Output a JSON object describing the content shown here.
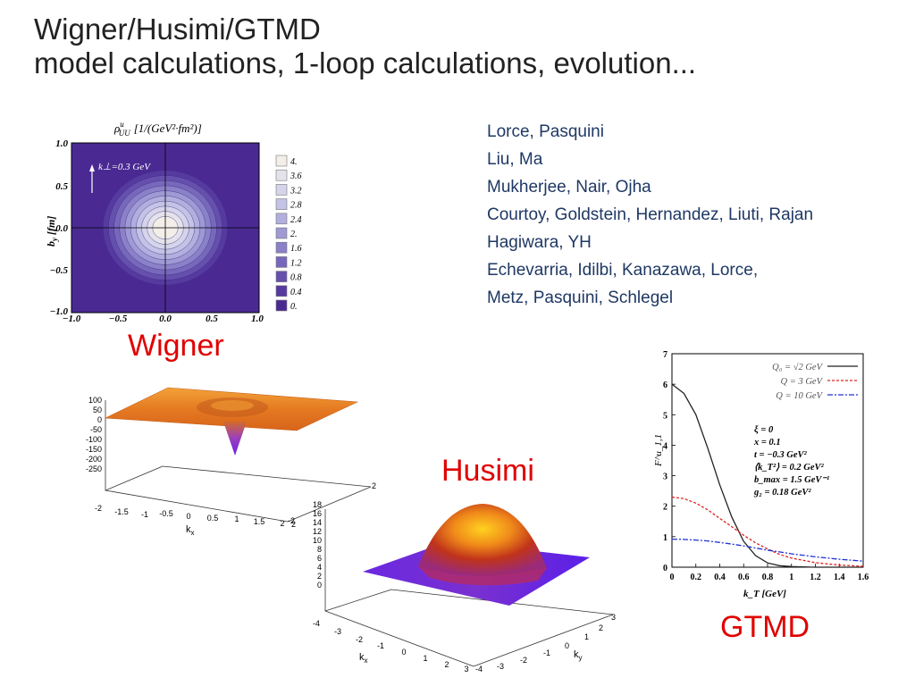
{
  "slide": {
    "title_line1": "Wigner/Husimi/GTMD",
    "title_line2": "model calculations, 1-loop calculations, evolution..."
  },
  "references": [
    "Lorce, Pasquini",
    "Liu, Ma",
    "Mukherjee, Nair, Ojha",
    "Courtoy, Goldstein, Hernandez, Liuti, Rajan",
    "Hagiwara, YH",
    "Echevarria, Idilbi, Kanazawa, Lorce,",
    "Metz, Pasquini, Schlegel"
  ],
  "labels": {
    "wigner": "Wigner",
    "husimi": "Husimi",
    "gtmd": "GTMD"
  },
  "contour": {
    "title": "ρ",
    "title_sup": "u",
    "title_sub": "UU",
    "title_units": "[1/(GeV²·fm²)]",
    "ylabel": "b",
    "ylabel_sub": "y",
    "ylabel_units": "[fm]",
    "annotation": "k⊥=0.3 GeV",
    "yticks": [
      "1.0",
      "0.5",
      "0.0",
      "−0.5",
      "−1.0"
    ],
    "xticks": [
      "−1.0",
      "−0.5",
      "0.0",
      "0.5",
      "1.0"
    ],
    "legend": [
      "4.",
      "3.6",
      "3.2",
      "2.8",
      "2.4",
      "2.",
      "1.6",
      "1.2",
      "0.8",
      "0.4",
      "0."
    ],
    "legend_colors": [
      "#f3eee8",
      "#e4e2ea",
      "#d5d4ea",
      "#c4c3e6",
      "#b2afde",
      "#9f99d4",
      "#8b81c8",
      "#7868bb",
      "#6650ad",
      "#563a9f",
      "#4a2a92"
    ]
  },
  "wigner_plot": {
    "zticks": [
      "100",
      "50",
      "0",
      "-50",
      "-100",
      "-150",
      "-200",
      "-250"
    ],
    "xticks": [
      "-2",
      "-1.5",
      "-1",
      "-0.5",
      "0",
      "0.5",
      "1",
      "1.5",
      "2"
    ],
    "xlabel": "k",
    "xlabel_sub": "x",
    "ytick_end": "2",
    "yedge_ticks": [
      "-2",
      "2"
    ]
  },
  "husimi_plot": {
    "zticks": [
      "18",
      "16",
      "14",
      "12",
      "10",
      "8",
      "6",
      "4",
      "2",
      "0"
    ],
    "xticks": [
      "-4",
      "-3",
      "-2",
      "-1",
      "0",
      "1",
      "2",
      "3"
    ],
    "xlabel": "k",
    "xlabel_sub": "x",
    "yticks": [
      "3",
      "2",
      "1",
      "0",
      "-1",
      "-2",
      "-3",
      "-4"
    ],
    "ylabel": "k",
    "ylabel_sub": "y"
  },
  "chart_data": {
    "type": "line",
    "title": "",
    "xlabel": "k_T [GeV]",
    "ylabel": "F^u_1,1",
    "xlim": [
      0,
      1.6
    ],
    "ylim": [
      0,
      7
    ],
    "xticks": [
      "0",
      "0.2",
      "0.4",
      "0.6",
      "0.8",
      "1",
      "1.2",
      "1.4",
      "1.6"
    ],
    "yticks": [
      "0",
      "1",
      "2",
      "3",
      "4",
      "5",
      "6",
      "7"
    ],
    "legend_position": "top-right",
    "params": [
      "ξ = 0",
      "x = 0.1",
      "t = −0.3 GeV²",
      "⟨k_T²⟩ = 0.2 GeV²",
      "b_max = 1.5 GeV⁻¹",
      "g₂ = 0.18 GeV²"
    ],
    "series": [
      {
        "name": "Q₀ = √2 GeV",
        "color": "#222222",
        "dash": "",
        "x": [
          0,
          0.1,
          0.2,
          0.3,
          0.4,
          0.5,
          0.6,
          0.7,
          0.8,
          0.9,
          1.0,
          1.2,
          1.4,
          1.6
        ],
        "y": [
          6.0,
          5.7,
          5.0,
          3.9,
          2.7,
          1.65,
          0.85,
          0.38,
          0.14,
          0.05,
          0.02,
          0.0,
          0.0,
          0.0
        ]
      },
      {
        "name": "Q = 3 GeV",
        "color": "#e02020",
        "dash": "3,2",
        "x": [
          0,
          0.1,
          0.2,
          0.3,
          0.4,
          0.5,
          0.6,
          0.7,
          0.8,
          0.9,
          1.0,
          1.2,
          1.4,
          1.6
        ],
        "y": [
          2.3,
          2.25,
          2.1,
          1.88,
          1.6,
          1.33,
          1.05,
          0.8,
          0.6,
          0.42,
          0.3,
          0.15,
          0.07,
          0.03
        ]
      },
      {
        "name": "Q = 10 GeV",
        "color": "#2030d0",
        "dash": "6,2,2,2",
        "x": [
          0,
          0.1,
          0.2,
          0.3,
          0.4,
          0.5,
          0.6,
          0.7,
          0.8,
          0.9,
          1.0,
          1.2,
          1.4,
          1.6
        ],
        "y": [
          0.92,
          0.91,
          0.89,
          0.86,
          0.81,
          0.76,
          0.7,
          0.63,
          0.56,
          0.5,
          0.44,
          0.34,
          0.26,
          0.2
        ]
      }
    ]
  }
}
